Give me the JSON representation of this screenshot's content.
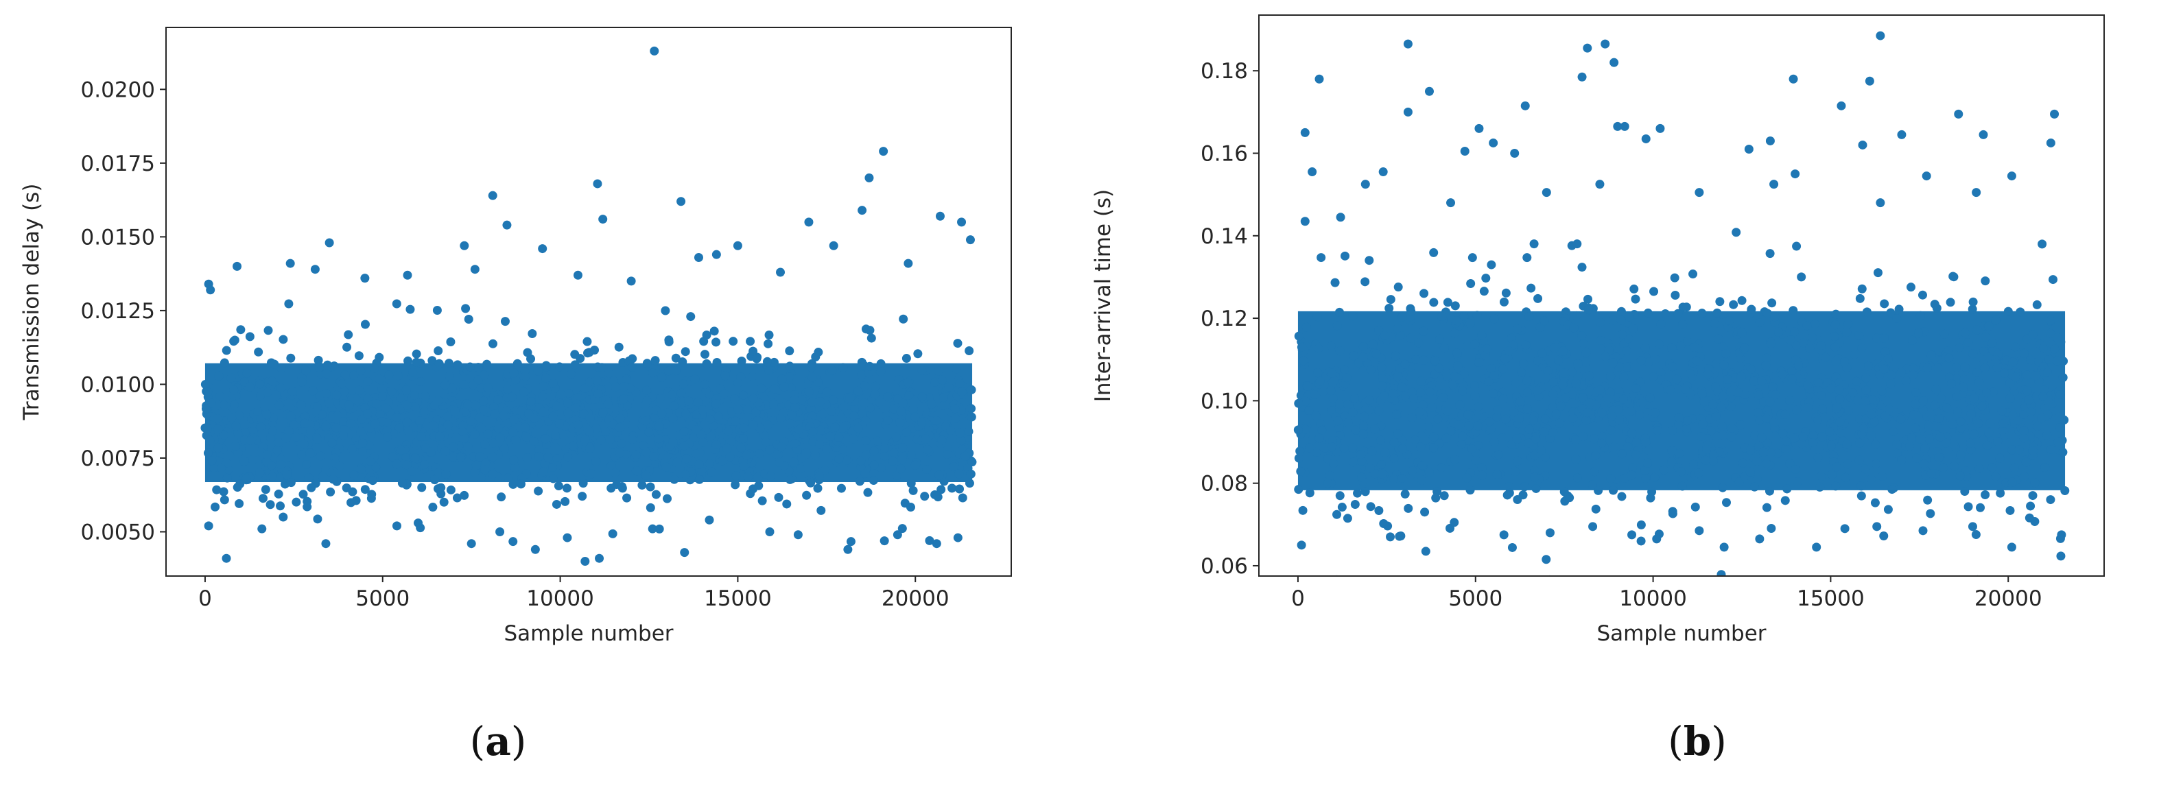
{
  "figure": {
    "captions": [
      {
        "open": "(",
        "letter": "a",
        "close": ")"
      },
      {
        "open": "(",
        "letter": "b",
        "close": ")"
      }
    ]
  },
  "point_color": "#1f77b4",
  "chart_data": [
    {
      "type": "scatter",
      "xlabel": "Sample number",
      "ylabel": "Transmission delay (s)",
      "xlim": [
        -1100,
        22700
      ],
      "ylim": [
        0.0035,
        0.0221
      ],
      "xticks": [
        0,
        5000,
        10000,
        15000,
        20000
      ],
      "xtick_labels": [
        "0",
        "5000",
        "10000",
        "15000",
        "20000"
      ],
      "yticks": [
        0.005,
        0.0075,
        0.01,
        0.0125,
        0.015,
        0.0175,
        0.02
      ],
      "ytick_labels": [
        "0.0050",
        "0.0075",
        "0.0100",
        "0.0125",
        "0.0150",
        "0.0175",
        "0.0200"
      ],
      "grid": false,
      "series": [
        {
          "bulk": {
            "x_range": [
              0,
              21600
            ],
            "y_center": 0.0087,
            "y_spread": 0.0013,
            "count": 1400
          },
          "points": [
            [
              12650,
              0.0213
            ],
            [
              19100,
              0.0179
            ],
            [
              18700,
              0.017
            ],
            [
              11050,
              0.0168
            ],
            [
              8100,
              0.0164
            ],
            [
              13400,
              0.0162
            ],
            [
              11200,
              0.0156
            ],
            [
              17000,
              0.0155
            ],
            [
              8500,
              0.0154
            ],
            [
              18500,
              0.0159
            ],
            [
              20700,
              0.0157
            ],
            [
              21300,
              0.0155
            ],
            [
              21550,
              0.0149
            ],
            [
              3500,
              0.0148
            ],
            [
              7300,
              0.0147
            ],
            [
              9500,
              0.0146
            ],
            [
              15000,
              0.0147
            ],
            [
              17700,
              0.0147
            ],
            [
              14400,
              0.0144
            ],
            [
              2400,
              0.0141
            ],
            [
              13900,
              0.0143
            ],
            [
              5700,
              0.0137
            ],
            [
              900,
              0.014
            ],
            [
              3100,
              0.0139
            ],
            [
              7600,
              0.0139
            ],
            [
              10500,
              0.0137
            ],
            [
              12000,
              0.0135
            ],
            [
              16200,
              0.0138
            ],
            [
              19800,
              0.0141
            ],
            [
              4500,
              0.0136
            ],
            [
              100,
              0.0134
            ],
            [
              150,
              0.0132
            ],
            [
              600,
              0.0041
            ],
            [
              11100,
              0.0041
            ],
            [
              10700,
              0.004
            ],
            [
              13500,
              0.0043
            ],
            [
              9300,
              0.0044
            ],
            [
              3400,
              0.0046
            ],
            [
              7500,
              0.0046
            ],
            [
              18100,
              0.0044
            ],
            [
              20600,
              0.0046
            ],
            [
              21200,
              0.0048
            ],
            [
              20400,
              0.0047
            ],
            [
              1600,
              0.0051
            ],
            [
              5400,
              0.0052
            ],
            [
              15900,
              0.005
            ],
            [
              16700,
              0.0049
            ],
            [
              12600,
              0.0051
            ],
            [
              100,
              0.0052
            ],
            [
              8300,
              0.005
            ],
            [
              19500,
              0.0049
            ],
            [
              2200,
              0.0055
            ],
            [
              14200,
              0.0054
            ],
            [
              6000,
              0.0053
            ],
            [
              10200,
              0.0048
            ]
          ]
        }
      ]
    },
    {
      "type": "scatter",
      "xlabel": "Sample number",
      "ylabel": "Inter-arrival time (s)",
      "xlim": [
        -1100,
        22700
      ],
      "ylim": [
        0.0575,
        0.1935
      ],
      "xticks": [
        0,
        5000,
        10000,
        15000,
        20000
      ],
      "xtick_labels": [
        "0",
        "5000",
        "10000",
        "15000",
        "20000"
      ],
      "yticks": [
        0.06,
        0.08,
        0.1,
        0.12,
        0.14,
        0.16,
        0.18
      ],
      "ytick_labels": [
        "0.06",
        "0.08",
        "0.10",
        "0.12",
        "0.14",
        "0.16",
        "0.18"
      ],
      "grid": false,
      "series": [
        {
          "bulk": {
            "x_range": [
              0,
              21600
            ],
            "y_center": 0.1,
            "y_spread": 0.014,
            "count": 1400
          },
          "points": [
            [
              16400,
              0.1885
            ],
            [
              3100,
              0.1865
            ],
            [
              8650,
              0.1865
            ],
            [
              8150,
              0.1855
            ],
            [
              8900,
              0.182
            ],
            [
              8000,
              0.1785
            ],
            [
              600,
              0.178
            ],
            [
              16100,
              0.1775
            ],
            [
              13950,
              0.178
            ],
            [
              3700,
              0.175
            ],
            [
              15300,
              0.1715
            ],
            [
              6400,
              0.1715
            ],
            [
              21300,
              0.1695
            ],
            [
              18600,
              0.1695
            ],
            [
              3100,
              0.17
            ],
            [
              19300,
              0.1645
            ],
            [
              17000,
              0.1645
            ],
            [
              200,
              0.165
            ],
            [
              9800,
              0.1635
            ],
            [
              13300,
              0.163
            ],
            [
              15900,
              0.162
            ],
            [
              21200,
              0.1625
            ],
            [
              9000,
              0.1665
            ],
            [
              9200,
              0.1665
            ],
            [
              5100,
              0.166
            ],
            [
              5500,
              0.1625
            ],
            [
              10200,
              0.166
            ],
            [
              4700,
              0.1605
            ],
            [
              12700,
              0.161
            ],
            [
              6100,
              0.16
            ],
            [
              14000,
              0.155
            ],
            [
              400,
              0.1555
            ],
            [
              11300,
              0.1505
            ],
            [
              1900,
              0.1525
            ],
            [
              20100,
              0.1545
            ],
            [
              17700,
              0.1545
            ],
            [
              7000,
              0.1505
            ],
            [
              8500,
              0.1525
            ],
            [
              16400,
              0.148
            ],
            [
              2400,
              0.1555
            ],
            [
              1200,
              0.1445
            ],
            [
              13400,
              0.1525
            ],
            [
              200,
              0.1435
            ],
            [
              19100,
              0.1505
            ],
            [
              4300,
              0.148
            ],
            [
              3600,
              0.0635
            ],
            [
              100,
              0.065
            ],
            [
              10100,
              0.0665
            ],
            [
              14600,
              0.0645
            ],
            [
              12000,
              0.0645
            ],
            [
              20100,
              0.0645
            ],
            [
              2600,
              0.067
            ],
            [
              7100,
              0.068
            ],
            [
              9400,
              0.0675
            ],
            [
              17600,
              0.0685
            ],
            [
              21500,
              0.0675
            ],
            [
              5800,
              0.0675
            ],
            [
              13000,
              0.0665
            ],
            [
              16300,
              0.0695
            ],
            [
              19000,
              0.0695
            ],
            [
              11300,
              0.0685
            ],
            [
              15400,
              0.069
            ],
            [
              4400,
              0.0705
            ],
            [
              1400,
              0.0715
            ],
            [
              8300,
              0.0695
            ]
          ]
        }
      ]
    }
  ]
}
